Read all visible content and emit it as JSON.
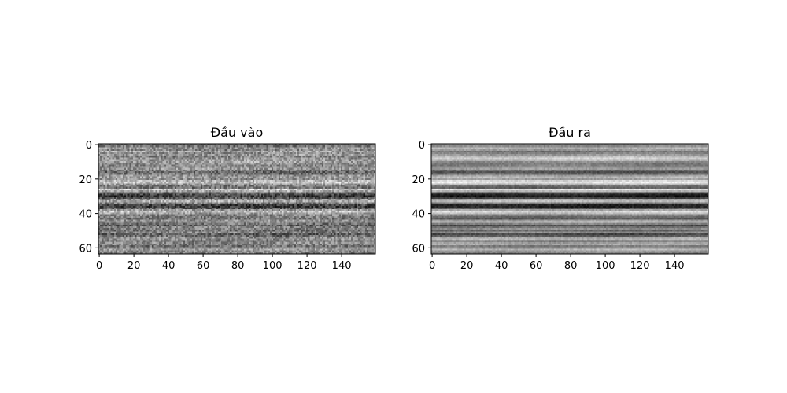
{
  "chart_data": [
    {
      "type": "heatmap",
      "title": "Đầu vào",
      "colormap": "gray",
      "xlim": [
        0,
        160
      ],
      "ylim": [
        64,
        0
      ],
      "x_ticks": [
        0,
        20,
        40,
        60,
        80,
        100,
        120,
        140
      ],
      "y_ticks": [
        0,
        20,
        40,
        60
      ],
      "x_tick_labels": [
        "0",
        "20",
        "40",
        "60",
        "80",
        "100",
        "120",
        "140"
      ],
      "y_tick_labels": [
        "0",
        "20",
        "40",
        "60"
      ],
      "row_profile": [
        0.5,
        0.46,
        0.58,
        0.52,
        0.66,
        0.55,
        0.6,
        0.52,
        0.58,
        0.62,
        0.64,
        0.57,
        0.54,
        0.56,
        0.6,
        0.47,
        0.4,
        0.44,
        0.58,
        0.62,
        0.55,
        0.7,
        0.76,
        0.62,
        0.48,
        0.46,
        0.8,
        0.66,
        0.4,
        0.3,
        0.22,
        0.34,
        0.58,
        0.67,
        0.52,
        0.25,
        0.22,
        0.36,
        0.6,
        0.74,
        0.64,
        0.52,
        0.5,
        0.46,
        0.58,
        0.55,
        0.46,
        0.38,
        0.52,
        0.5,
        0.44,
        0.52,
        0.37,
        0.42,
        0.56,
        0.55,
        0.46,
        0.55,
        0.5,
        0.44,
        0.56,
        0.62,
        0.56,
        0.5
      ],
      "noise": 0.17,
      "grid": false
    },
    {
      "type": "heatmap",
      "title": "Đầu ra",
      "colormap": "gray",
      "xlim": [
        0,
        160
      ],
      "ylim": [
        64,
        0
      ],
      "x_ticks": [
        0,
        20,
        40,
        60,
        80,
        100,
        120,
        140
      ],
      "y_ticks": [
        0,
        20,
        40,
        60
      ],
      "x_tick_labels": [
        "0",
        "20",
        "40",
        "60",
        "80",
        "100",
        "120",
        "140"
      ],
      "y_tick_labels": [
        "0",
        "20",
        "40",
        "60"
      ],
      "row_profile": [
        0.62,
        0.55,
        0.7,
        0.6,
        0.45,
        0.52,
        0.6,
        0.74,
        0.82,
        0.7,
        0.55,
        0.48,
        0.5,
        0.56,
        0.62,
        0.42,
        0.32,
        0.4,
        0.62,
        0.72,
        0.62,
        0.84,
        0.9,
        0.72,
        0.45,
        0.38,
        0.88,
        0.72,
        0.3,
        0.16,
        0.1,
        0.26,
        0.66,
        0.74,
        0.48,
        0.14,
        0.14,
        0.34,
        0.64,
        0.84,
        0.74,
        0.5,
        0.42,
        0.36,
        0.62,
        0.76,
        0.52,
        0.3,
        0.44,
        0.56,
        0.4,
        0.55,
        0.28,
        0.36,
        0.66,
        0.7,
        0.4,
        0.62,
        0.66,
        0.48,
        0.58,
        0.72,
        0.6,
        0.52
      ],
      "noise": 0.06,
      "grid": false
    }
  ]
}
